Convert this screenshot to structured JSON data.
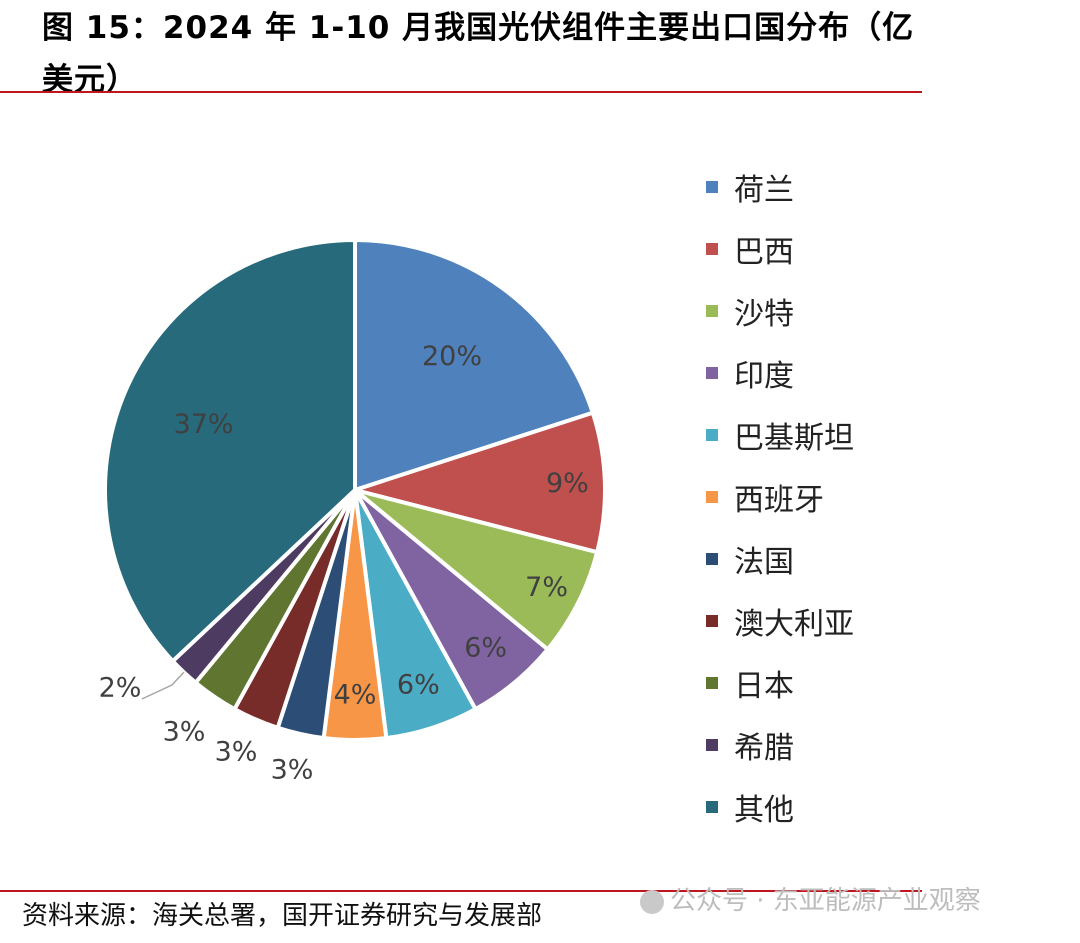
{
  "title": "图 15：2024 年 1-10 月我国光伏组件主要出口国分布（亿美元）",
  "source": "资料来源：海关总署，国开证券研究与发展部",
  "watermark": "公众号 · 东亚能源产业观察",
  "chart_data": {
    "type": "pie",
    "unit": "%",
    "legend_position": "right",
    "slices": [
      {
        "name": "荷兰",
        "value": 20,
        "label": "20%",
        "color": "#4f81bd"
      },
      {
        "name": "巴西",
        "value": 9,
        "label": "9%",
        "color": "#c0504d"
      },
      {
        "name": "沙特",
        "value": 7,
        "label": "7%",
        "color": "#9bbb59"
      },
      {
        "name": "印度",
        "value": 6,
        "label": "6%",
        "color": "#8064a2"
      },
      {
        "name": "巴基斯坦",
        "value": 6,
        "label": "6%",
        "color": "#4bacc6"
      },
      {
        "name": "西班牙",
        "value": 4,
        "label": "4%",
        "color": "#f79646"
      },
      {
        "name": "法国",
        "value": 3,
        "label": "3%",
        "color": "#2c4d75"
      },
      {
        "name": "澳大利亚",
        "value": 3,
        "label": "3%",
        "color": "#772c2a"
      },
      {
        "name": "日本",
        "value": 3,
        "label": "3%",
        "color": "#5f7530"
      },
      {
        "name": "希腊",
        "value": 2,
        "label": "2%",
        "color": "#4d3b62"
      },
      {
        "name": "其他",
        "value": 37,
        "label": "37%",
        "color": "#276a7c"
      }
    ]
  }
}
